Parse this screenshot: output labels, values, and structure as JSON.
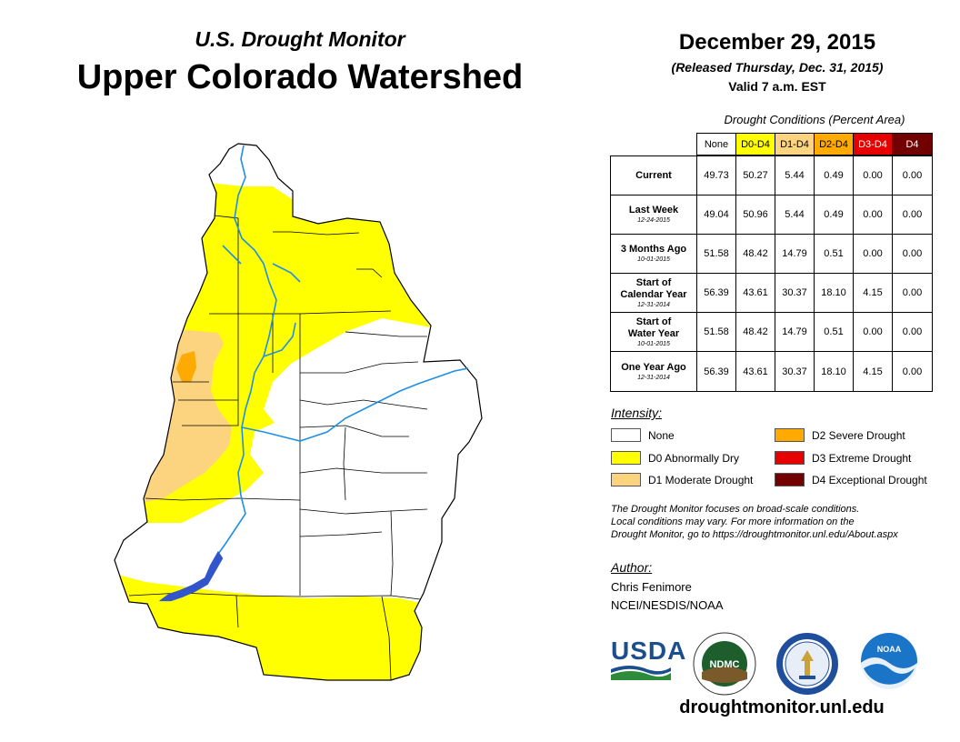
{
  "header": {
    "subtitle": "U.S. Drought Monitor",
    "title": "Upper Colorado Watershed",
    "date": "December 29, 2015",
    "released": "(Released Thursday, Dec. 31, 2015)",
    "valid": "Valid 7 a.m. EST"
  },
  "table": {
    "title": "Drought Conditions (Percent Area)",
    "columns": [
      "None",
      "D0-D4",
      "D1-D4",
      "D2-D4",
      "D3-D4",
      "D4"
    ],
    "column_colors": [
      "#ffffff",
      "#ffff00",
      "#fcd37f",
      "#ffaa00",
      "#e60000",
      "#730000"
    ],
    "column_text_colors": [
      "#000000",
      "#000000",
      "#000000",
      "#000000",
      "#ffffff",
      "#ffffff"
    ],
    "rows": [
      {
        "label": "Current",
        "label2": "",
        "date": "",
        "values": [
          "49.73",
          "50.27",
          "5.44",
          "0.49",
          "0.00",
          "0.00"
        ]
      },
      {
        "label": "Last Week",
        "label2": "",
        "date": "12-24-2015",
        "values": [
          "49.04",
          "50.96",
          "5.44",
          "0.49",
          "0.00",
          "0.00"
        ]
      },
      {
        "label": "3 Months Ago",
        "label2": "",
        "date": "10-01-2015",
        "values": [
          "51.58",
          "48.42",
          "14.79",
          "0.51",
          "0.00",
          "0.00"
        ]
      },
      {
        "label": "Start of",
        "label2": "Calendar Year",
        "date": "12-31-2014",
        "values": [
          "56.39",
          "43.61",
          "30.37",
          "18.10",
          "4.15",
          "0.00"
        ]
      },
      {
        "label": "Start of",
        "label2": "Water Year",
        "date": "10-01-2015",
        "values": [
          "51.58",
          "48.42",
          "14.79",
          "0.51",
          "0.00",
          "0.00"
        ]
      },
      {
        "label": "One Year Ago",
        "label2": "",
        "date": "12-31-2014",
        "values": [
          "56.39",
          "43.61",
          "30.37",
          "18.10",
          "4.15",
          "0.00"
        ]
      }
    ]
  },
  "legend": {
    "title": "Intensity:",
    "items": [
      {
        "label": "None",
        "color": "#ffffff"
      },
      {
        "label": "D0 Abnormally Dry",
        "color": "#ffff00"
      },
      {
        "label": "D1 Moderate Drought",
        "color": "#fcd37f"
      },
      {
        "label": "D2 Severe Drought",
        "color": "#ffaa00"
      },
      {
        "label": "D3 Extreme Drought",
        "color": "#e60000"
      },
      {
        "label": "D4 Exceptional Drought",
        "color": "#730000"
      }
    ]
  },
  "note": {
    "line1": "The Drought Monitor focuses on broad-scale conditions.",
    "line2": "Local conditions may vary. For more information on the",
    "line3": "Drought Monitor, go to https://droughtmonitor.unl.edu/About.aspx"
  },
  "author": {
    "title": "Author:",
    "name": "Chris Fenimore",
    "org": "NCEI/NESDIS/NOAA"
  },
  "logos": {
    "usda": "USDA",
    "ndmc": "NDMC",
    "noaa": "NOAA"
  },
  "url": "droughtmonitor.unl.edu",
  "map_colors": {
    "none": "#ffffff",
    "d0": "#ffff00",
    "d1": "#fcd37f",
    "d2": "#ffaa00",
    "river": "#1e8fe6",
    "lake": "#3355cc",
    "border": "#000000"
  }
}
